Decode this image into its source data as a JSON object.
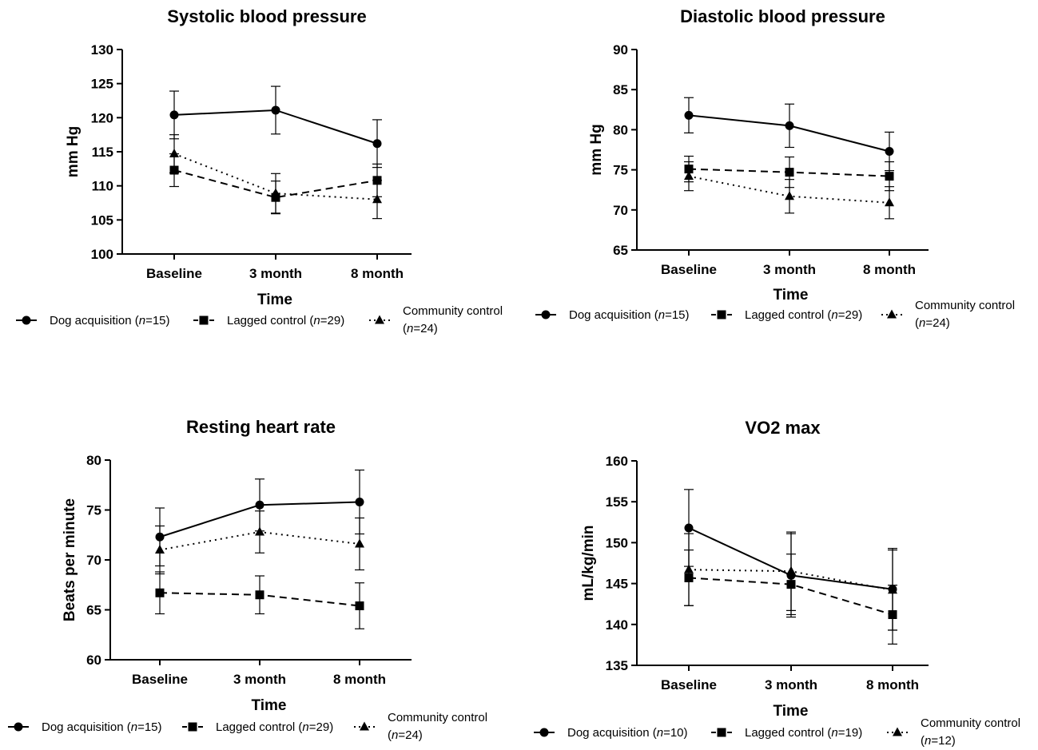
{
  "chart_data": [
    {
      "type": "line",
      "title": "Systolic blood pressure",
      "xlabel": "Time",
      "ylabel": "mm Hg",
      "categories": [
        "Baseline",
        "3 month",
        "8 month"
      ],
      "ylim": [
        100,
        130
      ],
      "yticks": [
        "100",
        "105",
        "110",
        "115",
        "120",
        "125",
        "130"
      ],
      "series": [
        {
          "name": "Dog acquisition (n=15)",
          "values": [
            120.4,
            121.1,
            116.2
          ],
          "err": [
            3.5,
            3.5,
            3.5
          ]
        },
        {
          "name": "Lagged control (n=29)",
          "values": [
            112.3,
            108.3,
            110.8
          ],
          "err": [
            2.4,
            2.4,
            2.4
          ]
        },
        {
          "name": "Community control (n=24)",
          "values": [
            114.7,
            108.9,
            108.0
          ],
          "err": [
            2.8,
            2.9,
            2.8
          ]
        }
      ],
      "legend": [
        {
          "label": "Dog acquisition (",
          "italic": "n",
          "suffix": "=15)"
        },
        {
          "label": "Lagged control (",
          "italic": "n",
          "suffix": "=29)"
        },
        {
          "label": "Community control",
          "line2_prefix": "(",
          "italic": "n",
          "suffix": "=24)"
        }
      ],
      "grid": false,
      "legend_placement": "bottom"
    },
    {
      "type": "line",
      "title": "Diastolic blood pressure",
      "xlabel": "Time",
      "ylabel": "mm  Hg",
      "categories": [
        "Baseline",
        "3 month",
        "8 month"
      ],
      "ylim": [
        65,
        90
      ],
      "yticks": [
        "65",
        "70",
        "75",
        "80",
        "85",
        "90"
      ],
      "series": [
        {
          "name": "Dog acquisition (n=15)",
          "values": [
            81.8,
            80.5,
            77.3
          ],
          "err": [
            2.2,
            2.7,
            2.4
          ]
        },
        {
          "name": "Lagged control (n=29)",
          "values": [
            75.1,
            74.7,
            74.2
          ],
          "err": [
            1.6,
            1.9,
            1.8
          ]
        },
        {
          "name": "Community control (n=24)",
          "values": [
            74.2,
            71.7,
            70.9
          ],
          "err": [
            1.8,
            2.1,
            2.0
          ]
        }
      ],
      "legend": [
        {
          "label": "Dog acquisition (",
          "italic": "n",
          "suffix": "=15)"
        },
        {
          "label": "Lagged control (",
          "italic": "n",
          "suffix": "=29)"
        },
        {
          "label": "Community control",
          "line2_prefix": "(",
          "italic": "n",
          "suffix": "=24)"
        }
      ],
      "grid": false,
      "legend_placement": "bottom"
    },
    {
      "type": "line",
      "title": "Resting heart rate",
      "xlabel": "Time",
      "ylabel": "Beats per minute",
      "categories": [
        "Baseline",
        "3 month",
        "8 month"
      ],
      "ylim": [
        60,
        80
      ],
      "yticks": [
        "60",
        "65",
        "70",
        "75",
        "80"
      ],
      "series": [
        {
          "name": "Dog acquisition (n=15)",
          "values": [
            72.3,
            75.5,
            75.8
          ],
          "err": [
            2.9,
            2.6,
            3.2
          ]
        },
        {
          "name": "Lagged control (n=29)",
          "values": [
            66.7,
            66.5,
            65.4
          ],
          "err": [
            2.1,
            1.9,
            2.3
          ]
        },
        {
          "name": "Community control (n=24)",
          "values": [
            71.0,
            72.8,
            71.6
          ],
          "err": [
            2.4,
            2.1,
            2.6
          ]
        }
      ],
      "legend": [
        {
          "label": "Dog acquisition (",
          "italic": "n",
          "suffix": "=15)"
        },
        {
          "label": "Lagged control (",
          "italic": "n",
          "suffix": "=29)"
        },
        {
          "label": "Community control",
          "line2_prefix": "(",
          "italic": "n",
          "suffix": "=24)"
        }
      ],
      "grid": false,
      "legend_placement": "bottom"
    },
    {
      "type": "line",
      "title": "VO2 max",
      "xlabel": "Time",
      "ylabel": "mL/kg/min",
      "categories": [
        "Baseline",
        "3 month",
        "8 month"
      ],
      "ylim": [
        135,
        160
      ],
      "yticks": [
        "135",
        "140",
        "145",
        "150",
        "155",
        "160"
      ],
      "series": [
        {
          "name": "Dog acquisition (n=10)",
          "values": [
            151.8,
            146.0,
            144.3
          ],
          "err": [
            4.7,
            5.1,
            5.0
          ]
        },
        {
          "name": "Lagged control (n=19)",
          "values": [
            145.7,
            144.9,
            141.2
          ],
          "err": [
            3.4,
            3.7,
            3.6
          ]
        },
        {
          "name": "Community control (n=12)",
          "values": [
            146.7,
            146.5,
            144.2
          ],
          "err": [
            4.4,
            4.8,
            4.9
          ]
        }
      ],
      "legend": [
        {
          "label": "Dog acquisition (",
          "italic": "n",
          "suffix": "=10)"
        },
        {
          "label": "Lagged control (",
          "italic": "n",
          "suffix": "=19)"
        },
        {
          "label": "Community control",
          "line2_prefix": "(",
          "italic": "n",
          "suffix": "=12)"
        }
      ],
      "grid": false,
      "legend_placement": "bottom"
    }
  ]
}
